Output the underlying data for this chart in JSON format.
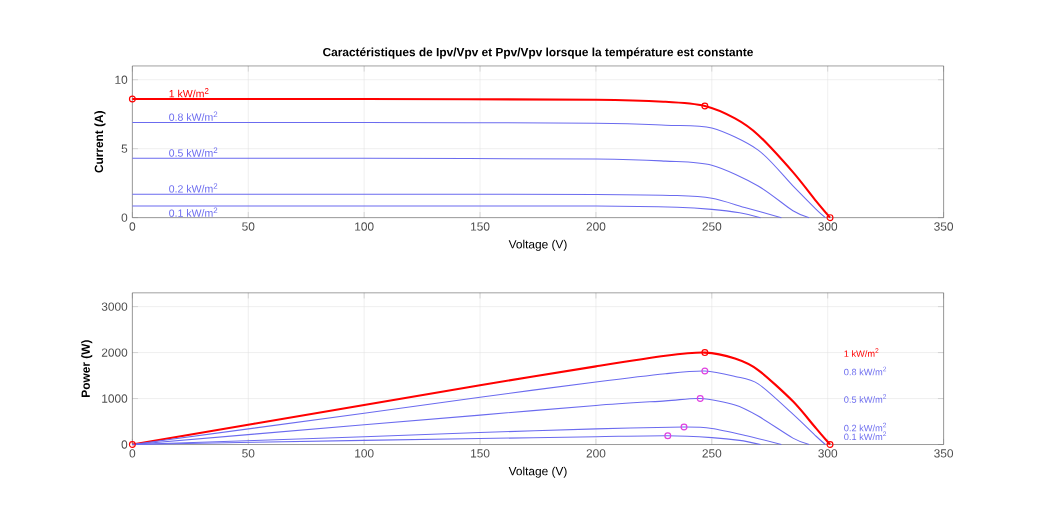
{
  "chart_data": [
    {
      "type": "line",
      "title": "Caractéristiques de Ipv/Vpv et Ppv/Vpv lorsque la température est constante",
      "xlabel": "Voltage (V)",
      "ylabel": "Current (A)",
      "xlim": [
        0,
        350
      ],
      "ylim": [
        0,
        11
      ],
      "xticks": [
        0,
        50,
        100,
        150,
        200,
        250,
        300,
        350
      ],
      "yticks": [
        0,
        5,
        10
      ],
      "grid": true,
      "series": [
        {
          "name": "1 kW/m$^{2}$",
          "color": "#ff0000",
          "x": [
            0,
            100,
            200,
            230,
            247,
            260,
            270,
            285,
            295,
            301
          ],
          "values": [
            8.6,
            8.6,
            8.55,
            8.4,
            8.1,
            7.2,
            6.0,
            3.3,
            1.2,
            0
          ]
        },
        {
          "name": "0.8 kW/m$^{2}$",
          "color": "#6b6bef",
          "x": [
            0,
            100,
            200,
            230,
            250,
            270,
            285,
            295,
            299
          ],
          "values": [
            6.9,
            6.9,
            6.85,
            6.7,
            6.5,
            4.9,
            2.3,
            0.6,
            0
          ]
        },
        {
          "name": "0.5 kW/m$^{2}$",
          "color": "#6b6bef",
          "x": [
            0,
            100,
            200,
            230,
            250,
            270,
            285,
            292
          ],
          "values": [
            4.3,
            4.3,
            4.25,
            4.1,
            3.8,
            2.3,
            0.5,
            0
          ]
        },
        {
          "name": "0.2 kW/m$^{2}$",
          "color": "#6b6bef",
          "x": [
            0,
            100,
            200,
            235,
            250,
            265,
            280
          ],
          "values": [
            1.7,
            1.7,
            1.68,
            1.6,
            1.4,
            0.7,
            0
          ]
        },
        {
          "name": "0.1 kW/m$^{2}$",
          "color": "#6b6bef",
          "x": [
            0,
            100,
            200,
            235,
            250,
            262,
            271
          ],
          "values": [
            0.85,
            0.85,
            0.84,
            0.75,
            0.6,
            0.35,
            0
          ]
        },
        {
          "type": "scatter",
          "marker": "circle",
          "color": "#ff0000",
          "x": [
            0,
            247,
            301
          ],
          "values": [
            8.6,
            8.1,
            0
          ]
        }
      ]
    },
    {
      "type": "line",
      "xlabel": "Voltage (V)",
      "ylabel": "Power (W)",
      "xlim": [
        0,
        350
      ],
      "ylim": [
        0,
        3300
      ],
      "xticks": [
        0,
        50,
        100,
        150,
        200,
        250,
        300,
        350
      ],
      "yticks": [
        0,
        1000,
        2000,
        3000
      ],
      "grid": true,
      "series": [
        {
          "name": "1 kW/m$^{2}$",
          "color": "#ff0000",
          "x": [
            0,
            100,
            150,
            200,
            230,
            247,
            260,
            270,
            285,
            295,
            301
          ],
          "values": [
            0,
            860,
            1290,
            1700,
            1930,
            2000,
            1870,
            1620,
            940,
            350,
            0
          ]
        },
        {
          "name": "0.8 kW/m$^{2}$",
          "color": "#6b6bef",
          "x": [
            0,
            100,
            150,
            200,
            230,
            247,
            260,
            270,
            285,
            295,
            299
          ],
          "values": [
            0,
            680,
            1030,
            1360,
            1540,
            1600,
            1480,
            1320,
            660,
            180,
            0
          ]
        },
        {
          "name": "0.5 kW/m$^{2}$",
          "color": "#6b6bef",
          "x": [
            0,
            100,
            150,
            200,
            230,
            245,
            260,
            270,
            285,
            292
          ],
          "values": [
            0,
            430,
            640,
            850,
            950,
            1000,
            860,
            620,
            140,
            0
          ]
        },
        {
          "name": "0.2 kW/m$^{2}$",
          "color": "#6b6bef",
          "x": [
            0,
            100,
            150,
            200,
            238,
            250,
            265,
            280
          ],
          "values": [
            0,
            170,
            260,
            340,
            380,
            350,
            190,
            0
          ]
        },
        {
          "name": "0.1 kW/m$^{2}$",
          "color": "#6b6bef",
          "x": [
            0,
            100,
            150,
            200,
            231,
            250,
            262,
            271
          ],
          "values": [
            0,
            90,
            130,
            170,
            190,
            150,
            90,
            0
          ]
        },
        {
          "type": "scatter",
          "marker": "circle",
          "color": "#ff0000",
          "x": [
            0,
            247,
            301
          ],
          "values": [
            0,
            2000,
            0
          ]
        },
        {
          "type": "scatter",
          "marker": "circle",
          "color": "#e040e0",
          "x": [
            247,
            245,
            238,
            231
          ],
          "values": [
            1600,
            1000,
            380,
            190
          ]
        }
      ]
    }
  ]
}
